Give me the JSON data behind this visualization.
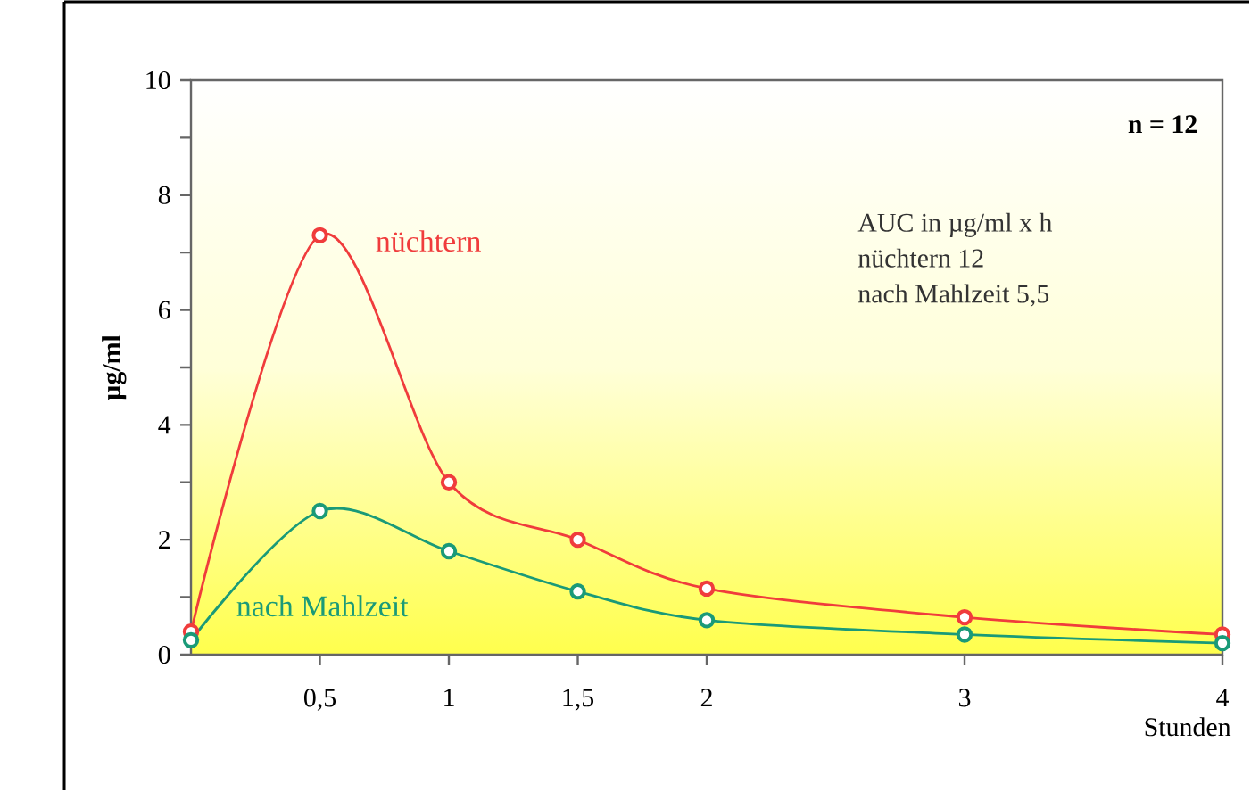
{
  "chart_data": {
    "type": "line",
    "xlabel": "Stunden",
    "ylabel": "µg/ml",
    "x": [
      0,
      0.5,
      1,
      1.5,
      2,
      3,
      4
    ],
    "series": [
      {
        "name": "nüchtern",
        "color": "#f03c3c",
        "values": [
          0.4,
          7.3,
          3.0,
          2.0,
          1.15,
          0.65,
          0.35
        ]
      },
      {
        "name": "nach Mahlzeit",
        "color": "#1a9a78",
        "values": [
          0.25,
          2.5,
          1.8,
          1.1,
          0.6,
          0.35,
          0.2
        ]
      }
    ],
    "xlim": [
      0,
      4
    ],
    "ylim": [
      0,
      10
    ],
    "xticks": [
      {
        "value": 0.5,
        "label": "0,5"
      },
      1,
      {
        "value": 1.5,
        "label": "1,5"
      },
      2,
      3,
      4
    ],
    "yticks": [
      0,
      {
        "value": 1,
        "label": null
      },
      2,
      {
        "value": 3,
        "label": null
      },
      4,
      {
        "value": 5,
        "label": null
      },
      6,
      {
        "value": 7,
        "label": null
      },
      8,
      {
        "value": 9,
        "label": null
      },
      10
    ],
    "annotations": [
      "n = 12",
      "AUC in µg/ml x h",
      "nüchtern 12",
      "nach Mahlzeit 5,5"
    ],
    "marker": "circle",
    "legend": false,
    "grid": false
  }
}
